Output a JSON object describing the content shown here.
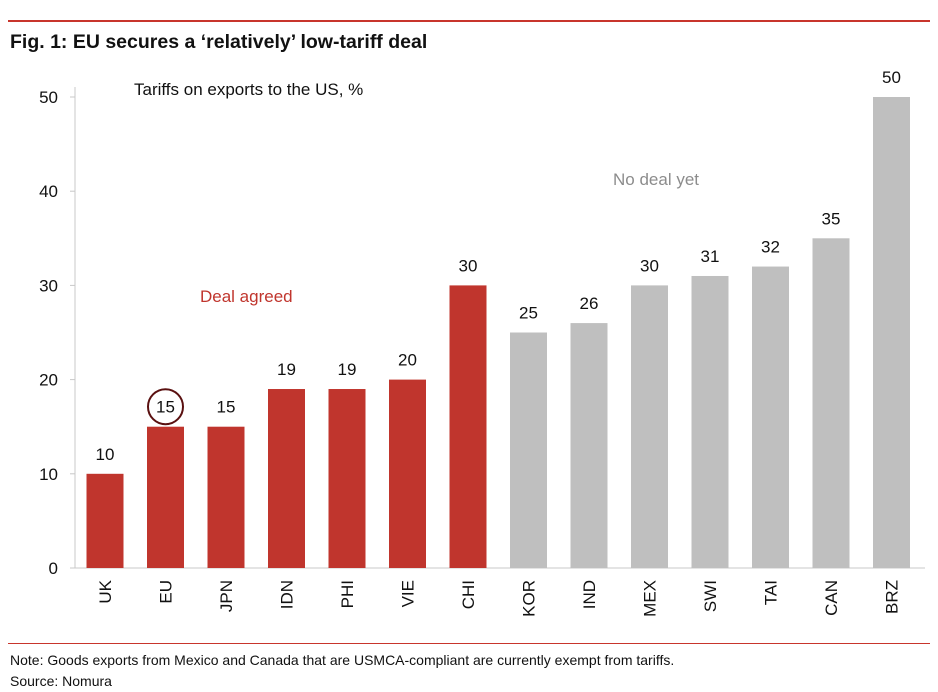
{
  "header": {
    "title": "Fig. 1: EU secures a ‘relatively’ low-tariff deal"
  },
  "footer": {
    "note": "Note: Goods exports from Mexico and Canada that are USMCA-compliant are currently exempt from tariffs.",
    "source": "Source: Nomura"
  },
  "colors": {
    "deal": "#c0352d",
    "no_deal": "#bfbfbf",
    "accent_rule": "#c8352c",
    "highlight_ring": "#5a1010",
    "no_deal_text": "#8c8c8c"
  },
  "chart_data": {
    "type": "bar",
    "title": "Fig. 1: EU secures a ‘relatively’ low-tariff deal",
    "ylabel": "Tariffs on exports to the US, %",
    "xlabel": "",
    "ylim": [
      0,
      50
    ],
    "yticks": [
      0,
      10,
      20,
      30,
      40,
      50
    ],
    "grid": false,
    "categories": [
      "UK",
      "EU",
      "JPN",
      "IDN",
      "PHI",
      "VIE",
      "CHI",
      "KOR",
      "IND",
      "MEX",
      "SWI",
      "TAI",
      "CAN",
      "BRZ"
    ],
    "values": [
      10,
      15,
      15,
      19,
      19,
      20,
      30,
      25,
      26,
      30,
      31,
      32,
      35,
      50
    ],
    "status": [
      "deal",
      "deal",
      "deal",
      "deal",
      "deal",
      "deal",
      "deal",
      "no_deal",
      "no_deal",
      "no_deal",
      "no_deal",
      "no_deal",
      "no_deal",
      "no_deal"
    ],
    "highlighted": "EU",
    "annotations": {
      "deal": "Deal agreed",
      "no_deal": "No deal yet"
    }
  }
}
